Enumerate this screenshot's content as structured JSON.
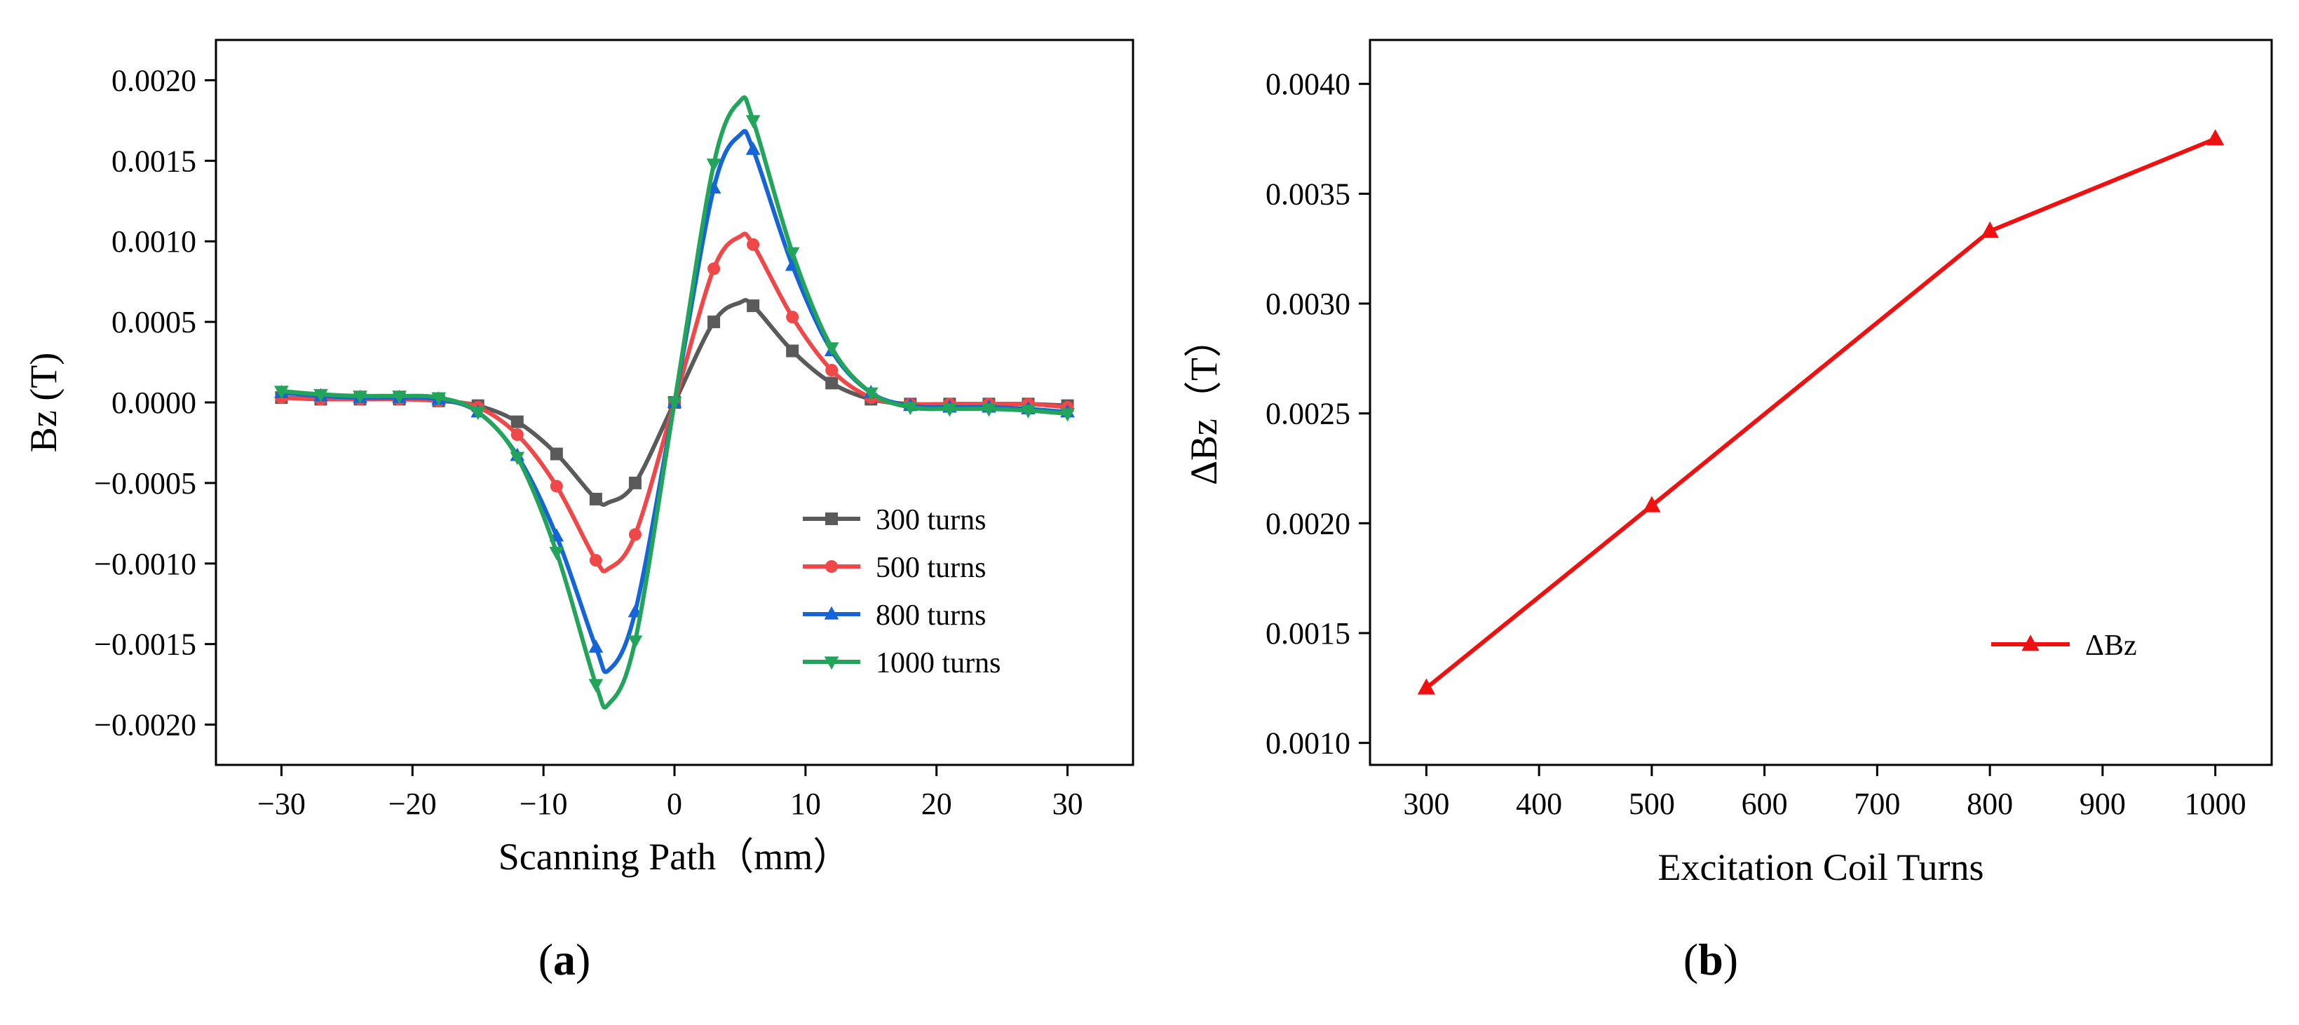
{
  "chart_data": [
    {
      "panel": "a",
      "type": "line",
      "panel_label": "(a)",
      "xlabel": "Scanning Path（mm）",
      "ylabel": "Bz (T)",
      "xlim": [
        -35,
        35
      ],
      "ylim": [
        -0.00225,
        0.00225
      ],
      "xticks": [
        -30,
        -20,
        -10,
        0,
        10,
        20,
        30
      ],
      "xtick_labels": [
        "−30",
        "−20",
        "−10",
        "0",
        "10",
        "20",
        "30"
      ],
      "yticks": [
        -0.002,
        -0.0015,
        -0.001,
        -0.0005,
        0,
        0.0005,
        0.001,
        0.0015,
        0.002
      ],
      "ytick_labels": [
        "−0.0020",
        "−0.0015",
        "−0.0010",
        "−0.0005",
        "0.0000",
        "0.0005",
        "0.0010",
        "0.0015",
        "0.0020"
      ],
      "grid": false,
      "legend_position": "bottom-right",
      "x": [
        -30,
        -27,
        -24,
        -21,
        -18,
        -15,
        -12,
        -9,
        -6,
        -3,
        0,
        3,
        6,
        9,
        12,
        15,
        18,
        21,
        24,
        27,
        30
      ],
      "series": [
        {
          "name": "300 turns",
          "color": "#5a5a5a",
          "marker": "square",
          "values": [
            3e-05,
            2e-05,
            2e-05,
            2e-05,
            1e-05,
            -2e-05,
            -0.00012,
            -0.00032,
            -0.0006,
            -0.0005,
            0.0,
            0.0005,
            0.0006,
            0.00032,
            0.00012,
            2e-05,
            -1e-05,
            -1e-05,
            -1e-05,
            -1e-05,
            -2e-05
          ],
          "peak": {
            "x": 5,
            "y": 0.00062
          },
          "trough": {
            "x": -5,
            "y": -0.00062
          }
        },
        {
          "name": "500 turns",
          "color": "#f04848",
          "marker": "circle",
          "values": [
            3e-05,
            2e-05,
            2e-05,
            2e-05,
            1e-05,
            -3e-05,
            -0.0002,
            -0.00052,
            -0.00098,
            -0.00082,
            0.0,
            0.00083,
            0.00098,
            0.00053,
            0.0002,
            3e-05,
            -1e-05,
            -1e-05,
            -1e-05,
            -1e-05,
            -3e-05
          ],
          "peak": {
            "x": 5,
            "y": 0.00103
          },
          "trough": {
            "x": -5,
            "y": -0.00103
          }
        },
        {
          "name": "800 turns",
          "color": "#1565d8",
          "marker": "triangle-up",
          "values": [
            6e-05,
            4e-05,
            3e-05,
            3e-05,
            2e-05,
            -6e-05,
            -0.00033,
            -0.00083,
            -0.00152,
            -0.0013,
            0.0,
            0.00133,
            0.00157,
            0.00085,
            0.00032,
            6e-05,
            -2e-05,
            -3e-05,
            -3e-05,
            -4e-05,
            -6e-05
          ],
          "peak": {
            "x": 5,
            "y": 0.00166
          },
          "trough": {
            "x": -5,
            "y": -0.00166
          }
        },
        {
          "name": "1000 turns",
          "color": "#22a55a",
          "marker": "triangle-down",
          "values": [
            7e-05,
            5e-05,
            4e-05,
            4e-05,
            3e-05,
            -6e-05,
            -0.00034,
            -0.00093,
            -0.00175,
            -0.00148,
            0.0,
            0.00148,
            0.00175,
            0.00093,
            0.00034,
            6e-05,
            -3e-05,
            -4e-05,
            -4e-05,
            -5e-05,
            -7e-05
          ],
          "peak": {
            "x": 5,
            "y": 0.00187
          },
          "trough": {
            "x": -5,
            "y": -0.00187
          }
        }
      ]
    },
    {
      "panel": "b",
      "type": "line",
      "panel_label": "(b)",
      "xlabel": "Excitation Coil Turns",
      "ylabel": "ΔBz（T）",
      "xlim": [
        250,
        1050
      ],
      "ylim": [
        0.0009,
        0.0042
      ],
      "xticks": [
        300,
        400,
        500,
        600,
        700,
        800,
        900,
        1000
      ],
      "xtick_labels": [
        "300",
        "400",
        "500",
        "600",
        "700",
        "800",
        "900",
        "1000"
      ],
      "yticks": [
        0.001,
        0.0015,
        0.002,
        0.0025,
        0.003,
        0.0035,
        0.004
      ],
      "ytick_labels": [
        "0.0010",
        "0.0015",
        "0.0020",
        "0.0025",
        "0.0030",
        "0.0035",
        "0.0040"
      ],
      "grid": false,
      "legend_position": "bottom-right",
      "x": [
        300,
        500,
        800,
        1000
      ],
      "series": [
        {
          "name": "ΔBz",
          "color": "#f01010",
          "marker": "triangle-up",
          "values": [
            0.00125,
            0.00208,
            0.00333,
            0.00375
          ]
        }
      ]
    }
  ]
}
